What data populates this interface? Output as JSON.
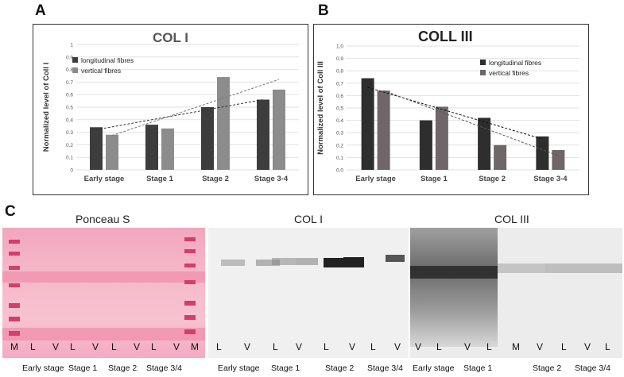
{
  "panels": {
    "a": "A",
    "b": "B",
    "c": "C"
  },
  "chart_data": [
    {
      "type": "bar",
      "title": "COL I",
      "ylabel": "Normalized level of Coll I",
      "categories": [
        "Early stage",
        "Stage 1",
        "Stage 2",
        "Stage 3-4"
      ],
      "series": [
        {
          "name": "longitudinal fibres",
          "values": [
            0.34,
            0.36,
            0.5,
            0.56
          ]
        },
        {
          "name": "vertical fibres",
          "values": [
            0.28,
            0.33,
            0.74,
            0.64
          ]
        }
      ],
      "yticks": [
        "0",
        "0.1",
        "0.2",
        "0.3",
        "0.4",
        "0.5",
        "0.6",
        "0.7",
        "0.8",
        "0.9",
        "1"
      ],
      "ylim": [
        0,
        1
      ],
      "trendlines": "dashed linear trendline per series",
      "legend": "top-left",
      "colors": {
        "longitudinal fibres": "#3d3d3d",
        "vertical fibres": "#8c8c8c"
      }
    },
    {
      "type": "bar",
      "title": "COLL III",
      "ylabel": "Normalized level of Coll III",
      "categories": [
        "Early stage",
        "Stage 1",
        "Stage 2",
        "Stage 3-4"
      ],
      "series": [
        {
          "name": "longitudinal fibres",
          "values": [
            0.74,
            0.4,
            0.42,
            0.27
          ]
        },
        {
          "name": "vertical fibres",
          "values": [
            0.64,
            0.51,
            0.2,
            0.16
          ]
        }
      ],
      "yticks": [
        "0,0",
        "0,1",
        "0,2",
        "0,3",
        "0,4",
        "0,5",
        "0,6",
        "0,7",
        "0,8",
        "0,9",
        "1,0"
      ],
      "ylim": [
        0,
        1
      ],
      "trendlines": "dashed linear trendline per series",
      "legend": "top-right",
      "colors": {
        "longitudinal fibres": "#2e2e2e",
        "vertical fibres": "#6f6767"
      }
    }
  ],
  "blots": [
    {
      "title": "Ponceau S",
      "lanes": [
        "M",
        "L",
        "V",
        "L",
        "V",
        "L",
        "V",
        "L",
        "V",
        "M"
      ],
      "groups": [
        "Early stage",
        "Stage 1",
        "Stage 2",
        "Stage 3/4"
      ]
    },
    {
      "title": "COL I",
      "lanes": [
        "L",
        "V",
        "L",
        "V",
        "L",
        "V",
        "L",
        "V"
      ],
      "groups": [
        "Early stage",
        "Stage 1",
        "Stage 2",
        "Stage 3/4"
      ]
    },
    {
      "title": "COL III",
      "lanes": [
        "V",
        "L",
        "V",
        "L",
        "M",
        "V",
        "L",
        "V",
        "L"
      ],
      "groups": [
        "Early stage",
        "Stage 1",
        "Stage 2",
        "Stage 3/4"
      ]
    }
  ]
}
